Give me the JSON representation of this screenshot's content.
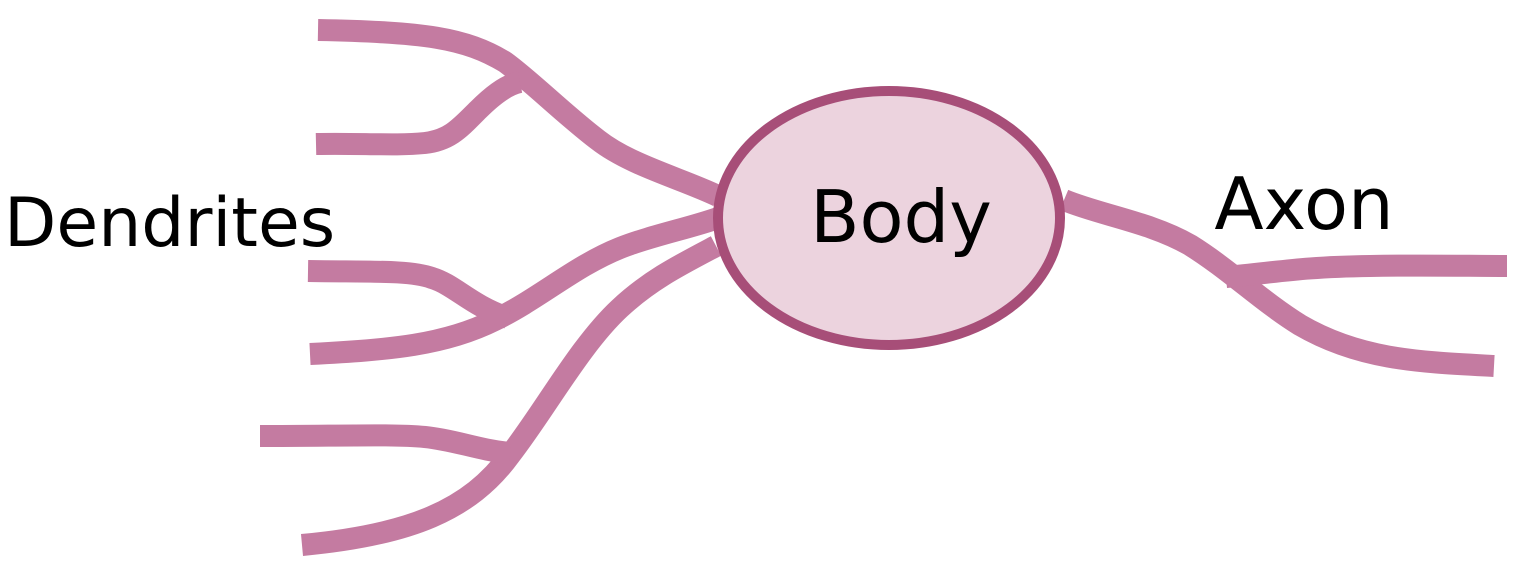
{
  "diagram": {
    "body_label": "Body",
    "dendrites_label": "Dendrites",
    "axon_label": "Axon"
  },
  "colors": {
    "branch": "#c47ba1",
    "body_fill": "#ecd3de",
    "body_stroke": "#a74e78",
    "text": "#000000",
    "background": "#ffffff"
  }
}
